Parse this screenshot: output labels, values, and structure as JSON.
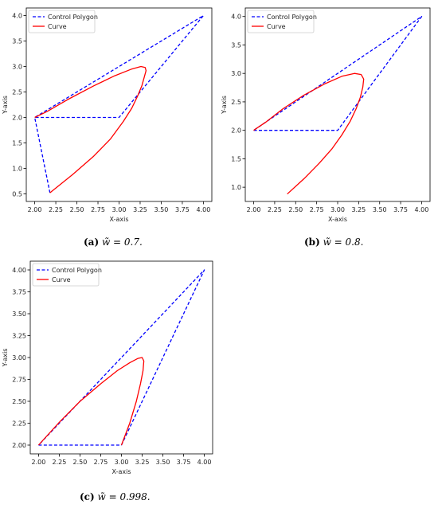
{
  "chart_data": [
    {
      "type": "line",
      "panel_label": "(a)",
      "caption": "w̃ = 0.7.",
      "xlabel": "X-axis",
      "ylabel": "Y-axis",
      "xlim": [
        1.9,
        4.1
      ],
      "ylim": [
        0.35,
        4.15
      ],
      "xticks": [
        2.0,
        2.25,
        2.5,
        2.75,
        3.0,
        3.25,
        3.5,
        3.75,
        4.0
      ],
      "xtick_labels": [
        "2.00",
        "2.25",
        "2.50",
        "2.75",
        "3.00",
        "3.25",
        "3.50",
        "3.75",
        "4.00"
      ],
      "yticks": [
        0.5,
        1.0,
        1.5,
        2.0,
        2.5,
        3.0,
        3.5,
        4.0
      ],
      "ytick_labels": [
        "0.5",
        "1.0",
        "1.5",
        "2.0",
        "2.5",
        "3.0",
        "3.5",
        "4.0"
      ],
      "legend": {
        "position": "top-left",
        "entries": [
          "Control Polygon",
          "Curve"
        ]
      },
      "series": [
        {
          "name": "Control Polygon",
          "color": "#0000ff",
          "style": "dashed",
          "x": [
            2.18,
            2.0,
            3.0,
            4.0,
            2.0
          ],
          "y": [
            0.52,
            2.0,
            2.0,
            4.0,
            2.0
          ]
        },
        {
          "name": "Curve",
          "color": "#ff0000",
          "style": "solid",
          "x": [
            2.18,
            2.45,
            2.7,
            2.9,
            3.05,
            3.15,
            3.22,
            3.27,
            3.3,
            3.32,
            3.31,
            3.26,
            3.15,
            2.95,
            2.7,
            2.4,
            2.15,
            2.0
          ],
          "y": [
            0.52,
            0.88,
            1.24,
            1.58,
            1.92,
            2.18,
            2.42,
            2.62,
            2.8,
            2.92,
            2.98,
            3.0,
            2.95,
            2.82,
            2.62,
            2.36,
            2.12,
            2.0
          ]
        }
      ]
    },
    {
      "type": "line",
      "panel_label": "(b)",
      "caption": "w̃ = 0.8.",
      "xlabel": "X-axis",
      "ylabel": "Y-axis",
      "xlim": [
        1.9,
        4.1
      ],
      "ylim": [
        0.75,
        4.15
      ],
      "xticks": [
        2.0,
        2.25,
        2.5,
        2.75,
        3.0,
        3.25,
        3.5,
        3.75,
        4.0
      ],
      "xtick_labels": [
        "2.00",
        "2.25",
        "2.50",
        "2.75",
        "3.00",
        "3.25",
        "3.50",
        "3.75",
        "4.00"
      ],
      "yticks": [
        1.0,
        1.5,
        2.0,
        2.5,
        3.0,
        3.5,
        4.0
      ],
      "ytick_labels": [
        "1.0",
        "1.5",
        "2.0",
        "2.5",
        "3.0",
        "3.5",
        "4.0"
      ],
      "legend": {
        "position": "top-left",
        "entries": [
          "Control Polygon",
          "Curve"
        ]
      },
      "series": [
        {
          "name": "Control Polygon",
          "color": "#0000ff",
          "style": "dashed",
          "x": [
            2.0,
            3.0,
            4.0,
            2.0
          ],
          "y": [
            2.0,
            2.0,
            4.0,
            2.0
          ]
        },
        {
          "name": "Curve",
          "color": "#ff0000",
          "style": "solid",
          "x": [
            2.4,
            2.6,
            2.78,
            2.93,
            3.05,
            3.15,
            3.22,
            3.27,
            3.3,
            3.31,
            3.28,
            3.2,
            3.05,
            2.85,
            2.6,
            2.35,
            2.15,
            2.0
          ],
          "y": [
            0.88,
            1.15,
            1.42,
            1.67,
            1.92,
            2.16,
            2.38,
            2.58,
            2.76,
            2.9,
            2.98,
            3.0,
            2.95,
            2.82,
            2.62,
            2.38,
            2.15,
            2.0
          ]
        }
      ]
    },
    {
      "type": "line",
      "panel_label": "(c)",
      "caption": "w̃ = 0.998.",
      "xlabel": "X-axis",
      "ylabel": "Y-axis",
      "xlim": [
        1.9,
        4.1
      ],
      "ylim": [
        1.9,
        4.1
      ],
      "xticks": [
        2.0,
        2.25,
        2.5,
        2.75,
        3.0,
        3.25,
        3.5,
        3.75,
        4.0
      ],
      "xtick_labels": [
        "2.00",
        "2.25",
        "2.50",
        "2.75",
        "3.00",
        "3.25",
        "3.50",
        "3.75",
        "4.00"
      ],
      "yticks": [
        2.0,
        2.25,
        2.5,
        2.75,
        3.0,
        3.25,
        3.5,
        3.75,
        4.0
      ],
      "ytick_labels": [
        "2.00",
        "2.25",
        "2.50",
        "2.75",
        "3.00",
        "3.25",
        "3.50",
        "3.75",
        "4.00"
      ],
      "legend": {
        "position": "top-left",
        "entries": [
          "Control Polygon",
          "Curve"
        ]
      },
      "series": [
        {
          "name": "Control Polygon",
          "color": "#0000ff",
          "style": "dashed",
          "x": [
            2.0,
            3.0,
            4.0,
            2.0
          ],
          "y": [
            2.0,
            2.0,
            4.0,
            2.0
          ]
        },
        {
          "name": "Curve",
          "color": "#ff0000",
          "style": "solid",
          "x": [
            3.0,
            3.1,
            3.18,
            3.23,
            3.26,
            3.27,
            3.25,
            3.2,
            3.1,
            2.95,
            2.75,
            2.5,
            2.25,
            2.0
          ],
          "y": [
            2.0,
            2.25,
            2.5,
            2.7,
            2.85,
            2.96,
            3.0,
            2.99,
            2.94,
            2.85,
            2.7,
            2.5,
            2.26,
            2.0
          ]
        }
      ]
    }
  ]
}
